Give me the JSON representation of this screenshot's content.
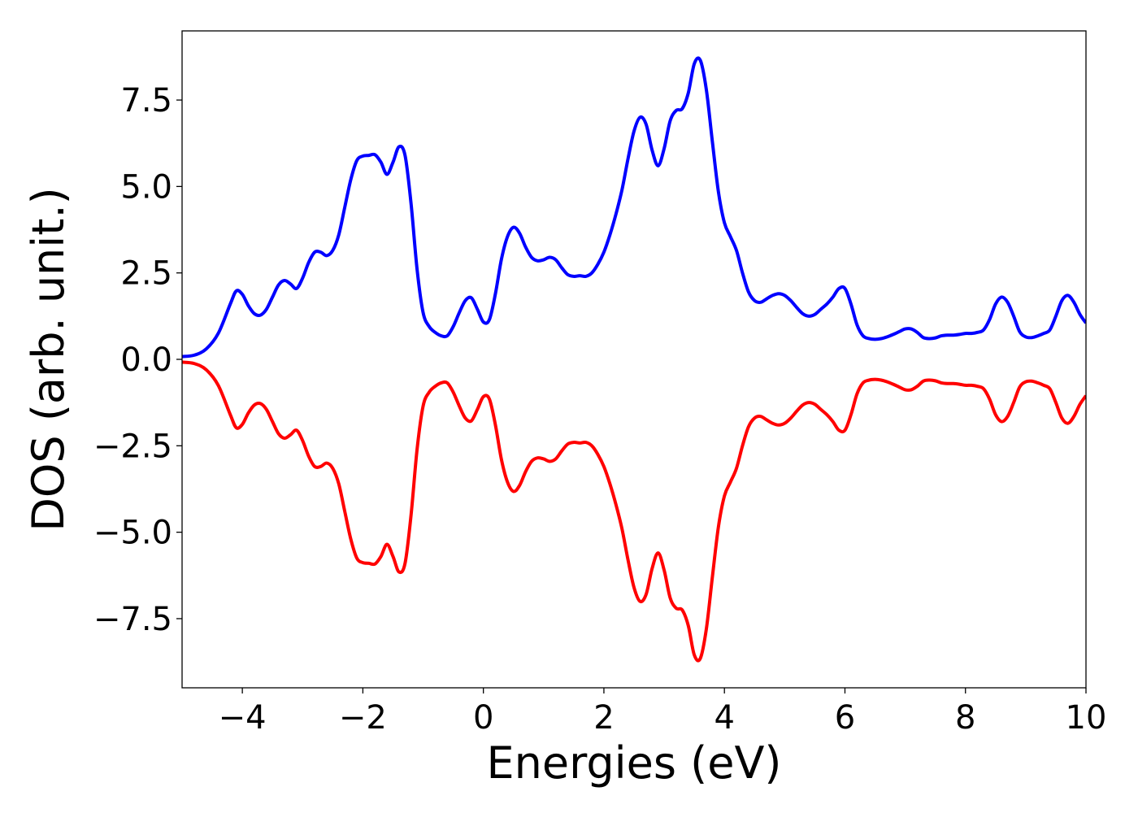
{
  "chart_data": {
    "type": "line",
    "title": "",
    "xlabel": "Energies (eV)",
    "ylabel": "DOS (arb. unit.)",
    "xlim": [
      -5,
      10
    ],
    "ylim": [
      -9.5,
      9.5
    ],
    "grid": false,
    "legend": "none",
    "x_ticks": [
      -4,
      -2,
      0,
      2,
      4,
      6,
      8,
      10
    ],
    "x_tick_labels": [
      "−4",
      "−2",
      "0",
      "2",
      "4",
      "6",
      "8",
      "10"
    ],
    "y_ticks": [
      -7.5,
      -5.0,
      -2.5,
      0.0,
      2.5,
      5.0,
      7.5
    ],
    "y_tick_labels": [
      "−7.5",
      "−5.0",
      "−2.5",
      "0.0",
      "2.5",
      "5.0",
      "7.5"
    ],
    "series": [
      {
        "color": "#0000ff",
        "points": [
          [
            -5.0,
            0.08
          ],
          [
            -4.8,
            0.12
          ],
          [
            -4.6,
            0.3
          ],
          [
            -4.4,
            0.75
          ],
          [
            -4.2,
            1.6
          ],
          [
            -4.1,
            1.98
          ],
          [
            -4.0,
            1.88
          ],
          [
            -3.9,
            1.55
          ],
          [
            -3.8,
            1.32
          ],
          [
            -3.7,
            1.28
          ],
          [
            -3.6,
            1.45
          ],
          [
            -3.5,
            1.8
          ],
          [
            -3.4,
            2.15
          ],
          [
            -3.3,
            2.28
          ],
          [
            -3.2,
            2.18
          ],
          [
            -3.1,
            2.05
          ],
          [
            -3.0,
            2.35
          ],
          [
            -2.9,
            2.8
          ],
          [
            -2.8,
            3.1
          ],
          [
            -2.7,
            3.1
          ],
          [
            -2.6,
            3.0
          ],
          [
            -2.5,
            3.15
          ],
          [
            -2.4,
            3.6
          ],
          [
            -2.3,
            4.4
          ],
          [
            -2.2,
            5.2
          ],
          [
            -2.1,
            5.75
          ],
          [
            -2.0,
            5.88
          ],
          [
            -1.9,
            5.9
          ],
          [
            -1.8,
            5.92
          ],
          [
            -1.7,
            5.7
          ],
          [
            -1.6,
            5.35
          ],
          [
            -1.5,
            5.7
          ],
          [
            -1.4,
            6.15
          ],
          [
            -1.3,
            5.9
          ],
          [
            -1.2,
            4.5
          ],
          [
            -1.1,
            2.6
          ],
          [
            -1.0,
            1.35
          ],
          [
            -0.9,
            0.95
          ],
          [
            -0.8,
            0.78
          ],
          [
            -0.7,
            0.68
          ],
          [
            -0.6,
            0.68
          ],
          [
            -0.5,
            0.95
          ],
          [
            -0.4,
            1.35
          ],
          [
            -0.3,
            1.7
          ],
          [
            -0.2,
            1.78
          ],
          [
            -0.1,
            1.45
          ],
          [
            0.0,
            1.08
          ],
          [
            0.1,
            1.15
          ],
          [
            0.2,
            1.9
          ],
          [
            0.3,
            2.9
          ],
          [
            0.4,
            3.55
          ],
          [
            0.5,
            3.82
          ],
          [
            0.6,
            3.65
          ],
          [
            0.7,
            3.25
          ],
          [
            0.8,
            2.95
          ],
          [
            0.9,
            2.85
          ],
          [
            1.0,
            2.88
          ],
          [
            1.1,
            2.95
          ],
          [
            1.2,
            2.88
          ],
          [
            1.3,
            2.65
          ],
          [
            1.4,
            2.45
          ],
          [
            1.5,
            2.4
          ],
          [
            1.6,
            2.42
          ],
          [
            1.7,
            2.4
          ],
          [
            1.8,
            2.5
          ],
          [
            1.9,
            2.75
          ],
          [
            2.0,
            3.1
          ],
          [
            2.1,
            3.6
          ],
          [
            2.2,
            4.2
          ],
          [
            2.3,
            4.9
          ],
          [
            2.4,
            5.8
          ],
          [
            2.5,
            6.6
          ],
          [
            2.6,
            7.0
          ],
          [
            2.7,
            6.8
          ],
          [
            2.8,
            6.05
          ],
          [
            2.9,
            5.6
          ],
          [
            3.0,
            6.1
          ],
          [
            3.1,
            6.9
          ],
          [
            3.2,
            7.2
          ],
          [
            3.3,
            7.25
          ],
          [
            3.4,
            7.7
          ],
          [
            3.5,
            8.55
          ],
          [
            3.6,
            8.65
          ],
          [
            3.7,
            7.8
          ],
          [
            3.8,
            6.3
          ],
          [
            3.9,
            4.85
          ],
          [
            4.0,
            3.95
          ],
          [
            4.1,
            3.55
          ],
          [
            4.2,
            3.15
          ],
          [
            4.3,
            2.5
          ],
          [
            4.4,
            1.95
          ],
          [
            4.5,
            1.7
          ],
          [
            4.6,
            1.65
          ],
          [
            4.7,
            1.75
          ],
          [
            4.8,
            1.85
          ],
          [
            4.9,
            1.9
          ],
          [
            5.0,
            1.85
          ],
          [
            5.1,
            1.7
          ],
          [
            5.2,
            1.5
          ],
          [
            5.3,
            1.32
          ],
          [
            5.4,
            1.25
          ],
          [
            5.5,
            1.3
          ],
          [
            5.6,
            1.45
          ],
          [
            5.7,
            1.6
          ],
          [
            5.8,
            1.8
          ],
          [
            5.9,
            2.05
          ],
          [
            6.0,
            2.05
          ],
          [
            6.1,
            1.6
          ],
          [
            6.2,
            1.0
          ],
          [
            6.3,
            0.68
          ],
          [
            6.4,
            0.6
          ],
          [
            6.5,
            0.58
          ],
          [
            6.6,
            0.6
          ],
          [
            6.7,
            0.65
          ],
          [
            6.8,
            0.72
          ],
          [
            6.9,
            0.8
          ],
          [
            7.0,
            0.88
          ],
          [
            7.1,
            0.88
          ],
          [
            7.2,
            0.78
          ],
          [
            7.3,
            0.63
          ],
          [
            7.4,
            0.6
          ],
          [
            7.5,
            0.62
          ],
          [
            7.6,
            0.68
          ],
          [
            7.7,
            0.7
          ],
          [
            7.8,
            0.7
          ],
          [
            7.9,
            0.72
          ],
          [
            8.0,
            0.75
          ],
          [
            8.1,
            0.75
          ],
          [
            8.2,
            0.78
          ],
          [
            8.3,
            0.85
          ],
          [
            8.4,
            1.15
          ],
          [
            8.5,
            1.6
          ],
          [
            8.6,
            1.8
          ],
          [
            8.7,
            1.65
          ],
          [
            8.8,
            1.25
          ],
          [
            8.9,
            0.8
          ],
          [
            9.0,
            0.65
          ],
          [
            9.1,
            0.63
          ],
          [
            9.2,
            0.68
          ],
          [
            9.3,
            0.75
          ],
          [
            9.4,
            0.85
          ],
          [
            9.5,
            1.25
          ],
          [
            9.6,
            1.7
          ],
          [
            9.7,
            1.85
          ],
          [
            9.8,
            1.65
          ],
          [
            9.9,
            1.3
          ],
          [
            10.0,
            1.05
          ]
        ]
      },
      {
        "color": "#ff0000",
        "points": [
          [
            -5.0,
            -0.08
          ],
          [
            -4.8,
            -0.12
          ],
          [
            -4.6,
            -0.3
          ],
          [
            -4.4,
            -0.75
          ],
          [
            -4.2,
            -1.6
          ],
          [
            -4.1,
            -1.98
          ],
          [
            -4.0,
            -1.88
          ],
          [
            -3.9,
            -1.55
          ],
          [
            -3.8,
            -1.32
          ],
          [
            -3.7,
            -1.28
          ],
          [
            -3.6,
            -1.45
          ],
          [
            -3.5,
            -1.8
          ],
          [
            -3.4,
            -2.15
          ],
          [
            -3.3,
            -2.28
          ],
          [
            -3.2,
            -2.18
          ],
          [
            -3.1,
            -2.05
          ],
          [
            -3.0,
            -2.35
          ],
          [
            -2.9,
            -2.8
          ],
          [
            -2.8,
            -3.1
          ],
          [
            -2.7,
            -3.1
          ],
          [
            -2.6,
            -3.0
          ],
          [
            -2.5,
            -3.15
          ],
          [
            -2.4,
            -3.6
          ],
          [
            -2.3,
            -4.4
          ],
          [
            -2.2,
            -5.2
          ],
          [
            -2.1,
            -5.75
          ],
          [
            -2.0,
            -5.88
          ],
          [
            -1.9,
            -5.9
          ],
          [
            -1.8,
            -5.92
          ],
          [
            -1.7,
            -5.7
          ],
          [
            -1.6,
            -5.35
          ],
          [
            -1.5,
            -5.7
          ],
          [
            -1.4,
            -6.15
          ],
          [
            -1.3,
            -5.9
          ],
          [
            -1.2,
            -4.5
          ],
          [
            -1.1,
            -2.6
          ],
          [
            -1.0,
            -1.35
          ],
          [
            -0.9,
            -0.95
          ],
          [
            -0.8,
            -0.78
          ],
          [
            -0.7,
            -0.68
          ],
          [
            -0.6,
            -0.68
          ],
          [
            -0.5,
            -0.95
          ],
          [
            -0.4,
            -1.35
          ],
          [
            -0.3,
            -1.7
          ],
          [
            -0.2,
            -1.78
          ],
          [
            -0.1,
            -1.45
          ],
          [
            0.0,
            -1.08
          ],
          [
            0.1,
            -1.15
          ],
          [
            0.2,
            -1.9
          ],
          [
            0.3,
            -2.9
          ],
          [
            0.4,
            -3.55
          ],
          [
            0.5,
            -3.82
          ],
          [
            0.6,
            -3.65
          ],
          [
            0.7,
            -3.25
          ],
          [
            0.8,
            -2.95
          ],
          [
            0.9,
            -2.85
          ],
          [
            1.0,
            -2.88
          ],
          [
            1.1,
            -2.95
          ],
          [
            1.2,
            -2.88
          ],
          [
            1.3,
            -2.65
          ],
          [
            1.4,
            -2.45
          ],
          [
            1.5,
            -2.4
          ],
          [
            1.6,
            -2.42
          ],
          [
            1.7,
            -2.4
          ],
          [
            1.8,
            -2.5
          ],
          [
            1.9,
            -2.75
          ],
          [
            2.0,
            -3.1
          ],
          [
            2.1,
            -3.6
          ],
          [
            2.2,
            -4.2
          ],
          [
            2.3,
            -4.9
          ],
          [
            2.4,
            -5.8
          ],
          [
            2.5,
            -6.6
          ],
          [
            2.6,
            -7.0
          ],
          [
            2.7,
            -6.8
          ],
          [
            2.8,
            -6.05
          ],
          [
            2.9,
            -5.6
          ],
          [
            3.0,
            -6.1
          ],
          [
            3.1,
            -6.9
          ],
          [
            3.2,
            -7.2
          ],
          [
            3.3,
            -7.25
          ],
          [
            3.4,
            -7.7
          ],
          [
            3.5,
            -8.55
          ],
          [
            3.6,
            -8.65
          ],
          [
            3.7,
            -7.8
          ],
          [
            3.8,
            -6.3
          ],
          [
            3.9,
            -4.85
          ],
          [
            4.0,
            -3.95
          ],
          [
            4.1,
            -3.55
          ],
          [
            4.2,
            -3.15
          ],
          [
            4.3,
            -2.5
          ],
          [
            4.4,
            -1.95
          ],
          [
            4.5,
            -1.7
          ],
          [
            4.6,
            -1.65
          ],
          [
            4.7,
            -1.75
          ],
          [
            4.8,
            -1.85
          ],
          [
            4.9,
            -1.9
          ],
          [
            5.0,
            -1.85
          ],
          [
            5.1,
            -1.7
          ],
          [
            5.2,
            -1.5
          ],
          [
            5.3,
            -1.32
          ],
          [
            5.4,
            -1.25
          ],
          [
            5.5,
            -1.3
          ],
          [
            5.6,
            -1.45
          ],
          [
            5.7,
            -1.6
          ],
          [
            5.8,
            -1.8
          ],
          [
            5.9,
            -2.05
          ],
          [
            6.0,
            -2.05
          ],
          [
            6.1,
            -1.6
          ],
          [
            6.2,
            -1.0
          ],
          [
            6.3,
            -0.68
          ],
          [
            6.4,
            -0.6
          ],
          [
            6.5,
            -0.58
          ],
          [
            6.6,
            -0.6
          ],
          [
            6.7,
            -0.65
          ],
          [
            6.8,
            -0.72
          ],
          [
            6.9,
            -0.8
          ],
          [
            7.0,
            -0.88
          ],
          [
            7.1,
            -0.88
          ],
          [
            7.2,
            -0.78
          ],
          [
            7.3,
            -0.63
          ],
          [
            7.4,
            -0.6
          ],
          [
            7.5,
            -0.62
          ],
          [
            7.6,
            -0.68
          ],
          [
            7.7,
            -0.7
          ],
          [
            7.8,
            -0.7
          ],
          [
            7.9,
            -0.72
          ],
          [
            8.0,
            -0.75
          ],
          [
            8.1,
            -0.75
          ],
          [
            8.2,
            -0.78
          ],
          [
            8.3,
            -0.85
          ],
          [
            8.4,
            -1.15
          ],
          [
            8.5,
            -1.6
          ],
          [
            8.6,
            -1.8
          ],
          [
            8.7,
            -1.65
          ],
          [
            8.8,
            -1.25
          ],
          [
            8.9,
            -0.8
          ],
          [
            9.0,
            -0.65
          ],
          [
            9.1,
            -0.63
          ],
          [
            9.2,
            -0.68
          ],
          [
            9.3,
            -0.75
          ],
          [
            9.4,
            -0.85
          ],
          [
            9.5,
            -1.25
          ],
          [
            9.6,
            -1.7
          ],
          [
            9.7,
            -1.85
          ],
          [
            9.8,
            -1.65
          ],
          [
            9.9,
            -1.3
          ],
          [
            10.0,
            -1.05
          ]
        ]
      }
    ]
  }
}
